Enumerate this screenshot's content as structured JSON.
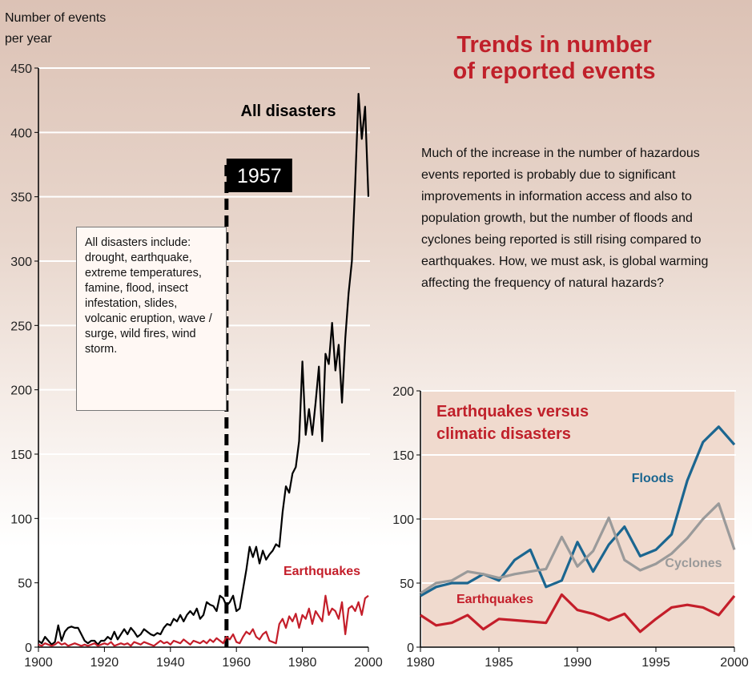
{
  "header": {
    "title": "Trends in number of reported events",
    "description": "Much of the increase in the number of hazardous events reported is probably due to significant improvements in information access and also to population growth, but the number of floods and cyclones being reported is still rising compared to earthquakes. How, we must ask, is global warming affecting the frequency of natural hazards?"
  },
  "chart_data": [
    {
      "type": "line",
      "y_label": "Number of events per year",
      "note": "All disasters include: drought, earthquake, extreme temperatures, famine, flood, insect infestation, slides, volcanic eruption, wave / surge, wild fires, wind storm.",
      "marker": {
        "x": 1957
      },
      "x": [
        1900,
        1901,
        1902,
        1903,
        1904,
        1905,
        1906,
        1907,
        1908,
        1909,
        1910,
        1911,
        1912,
        1913,
        1914,
        1915,
        1916,
        1917,
        1918,
        1919,
        1920,
        1921,
        1922,
        1923,
        1924,
        1925,
        1926,
        1927,
        1928,
        1929,
        1930,
        1931,
        1932,
        1933,
        1934,
        1935,
        1936,
        1937,
        1938,
        1939,
        1940,
        1941,
        1942,
        1943,
        1944,
        1945,
        1946,
        1947,
        1948,
        1949,
        1950,
        1951,
        1952,
        1953,
        1954,
        1955,
        1956,
        1957,
        1958,
        1959,
        1960,
        1961,
        1962,
        1963,
        1964,
        1965,
        1966,
        1967,
        1968,
        1969,
        1970,
        1971,
        1972,
        1973,
        1974,
        1975,
        1976,
        1977,
        1978,
        1979,
        1980,
        1981,
        1982,
        1983,
        1984,
        1985,
        1986,
        1987,
        1988,
        1989,
        1990,
        1991,
        1992,
        1993,
        1994,
        1995,
        1996,
        1997,
        1998,
        1999,
        2000
      ],
      "series": [
        {
          "name": "All disasters",
          "color": "#000000",
          "values": [
            5,
            3,
            8,
            5,
            2,
            4,
            17,
            5,
            12,
            15,
            16,
            15,
            15,
            10,
            5,
            3,
            5,
            5,
            2,
            5,
            5,
            8,
            6,
            12,
            6,
            10,
            14,
            10,
            15,
            12,
            8,
            10,
            14,
            12,
            10,
            9,
            11,
            10,
            15,
            18,
            17,
            22,
            20,
            25,
            20,
            25,
            28,
            25,
            30,
            22,
            25,
            35,
            33,
            32,
            28,
            40,
            38,
            32,
            35,
            40,
            28,
            30,
            45,
            60,
            78,
            70,
            78,
            65,
            75,
            68,
            72,
            75,
            80,
            78,
            105,
            125,
            120,
            135,
            140,
            160,
            222,
            165,
            185,
            165,
            190,
            218,
            160,
            228,
            220,
            252,
            215,
            235,
            190,
            240,
            275,
            300,
            360,
            430,
            395,
            420,
            350
          ]
        },
        {
          "name": "Earthquakes",
          "color": "#c41e2a",
          "values": [
            2,
            1,
            3,
            2,
            1,
            2,
            4,
            2,
            3,
            1,
            2,
            3,
            2,
            1,
            2,
            1,
            2,
            3,
            1,
            2,
            3,
            2,
            4,
            1,
            2,
            3,
            2,
            3,
            1,
            4,
            3,
            2,
            4,
            3,
            2,
            1,
            3,
            5,
            3,
            4,
            2,
            5,
            4,
            3,
            6,
            4,
            2,
            5,
            4,
            3,
            5,
            3,
            6,
            4,
            7,
            5,
            3,
            8,
            6,
            10,
            4,
            3,
            8,
            12,
            10,
            14,
            8,
            6,
            10,
            12,
            5,
            4,
            3,
            18,
            22,
            15,
            24,
            20,
            26,
            15,
            25,
            22,
            30,
            18,
            28,
            24,
            20,
            40,
            25,
            30,
            28,
            22,
            35,
            10,
            30,
            32,
            28,
            35,
            25,
            38,
            40
          ]
        }
      ],
      "xlim": [
        1900,
        2000
      ],
      "xticks": [
        1900,
        1920,
        1940,
        1960,
        1980,
        2000
      ],
      "ylim": [
        0,
        450
      ],
      "yticks": [
        0,
        50,
        100,
        150,
        200,
        250,
        300,
        350,
        400,
        450
      ],
      "grid": true
    },
    {
      "type": "line",
      "title": "Earthquakes versus climatic disasters",
      "x": [
        1980,
        1981,
        1982,
        1983,
        1984,
        1985,
        1986,
        1987,
        1988,
        1989,
        1990,
        1991,
        1992,
        1993,
        1994,
        1995,
        1996,
        1997,
        1998,
        1999,
        2000
      ],
      "series": [
        {
          "name": "Floods",
          "color": "#1b6690",
          "values": [
            40,
            47,
            50,
            50,
            57,
            52,
            68,
            76,
            47,
            52,
            82,
            59,
            80,
            94,
            71,
            76,
            88,
            130,
            160,
            172,
            158
          ]
        },
        {
          "name": "Cyclones",
          "color": "#9a9a9a",
          "values": [
            42,
            50,
            52,
            59,
            57,
            54,
            57,
            59,
            61,
            86,
            63,
            75,
            101,
            68,
            60,
            65,
            73,
            85,
            100,
            112,
            76
          ]
        },
        {
          "name": "Earthquakes",
          "color": "#c41e2a",
          "values": [
            25,
            17,
            19,
            25,
            14,
            22,
            21,
            20,
            19,
            41,
            29,
            26,
            21,
            26,
            12,
            22,
            31,
            33,
            31,
            25,
            40
          ]
        }
      ],
      "xlim": [
        1980,
        2000
      ],
      "xticks": [
        1980,
        1985,
        1990,
        1995,
        2000
      ],
      "ylim": [
        0,
        200
      ],
      "yticks": [
        0,
        50,
        100,
        150,
        200
      ],
      "grid": true
    }
  ]
}
